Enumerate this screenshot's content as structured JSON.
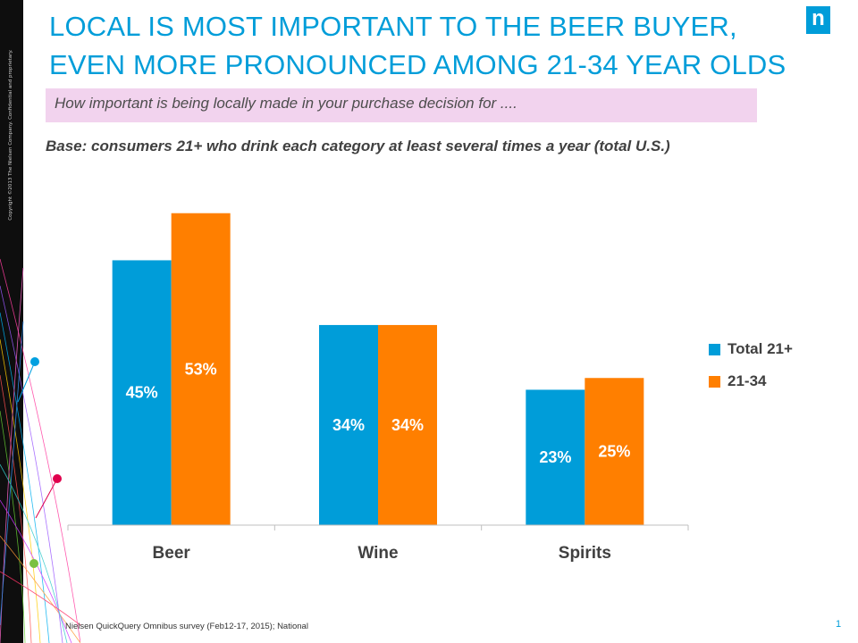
{
  "header": {
    "title": "LOCAL IS MOST IMPORTANT TO THE BEER BUYER, EVEN MORE PRONOUNCED AMONG 21-34 YEAR OLDS",
    "logo_text": "n"
  },
  "question": "How important is being locally made in your purchase decision for ....",
  "base_note": "Base: consumers 21+ who drink each category at least several times a year (total U.S.)",
  "copyright": "Copyright ©2013 The Nielsen Company. Confidential and proprietary.",
  "footer": {
    "source": "Nielsen QuickQuery Omnibus survey (Feb12-17, 2015); National",
    "page_number": "1"
  },
  "colors": {
    "title": "#009dd9",
    "series_total": "#009dd9",
    "series_2134": "#ff7f00",
    "question_bg": "#f2d3ee"
  },
  "chart_data": {
    "type": "bar",
    "title": "",
    "xlabel": "",
    "ylabel": "",
    "ylim": [
      0,
      60
    ],
    "grid": false,
    "legend_position": "right",
    "categories": [
      "Beer",
      "Wine",
      "Spirits"
    ],
    "series": [
      {
        "name": "Total 21+",
        "color": "#009dd9",
        "values": [
          45,
          34,
          23
        ],
        "labels": [
          "45%",
          "34%",
          "23%"
        ]
      },
      {
        "name": "21-34",
        "color": "#ff7f00",
        "values": [
          53,
          34,
          25
        ],
        "labels": [
          "53%",
          "34%",
          "25%"
        ]
      }
    ]
  }
}
